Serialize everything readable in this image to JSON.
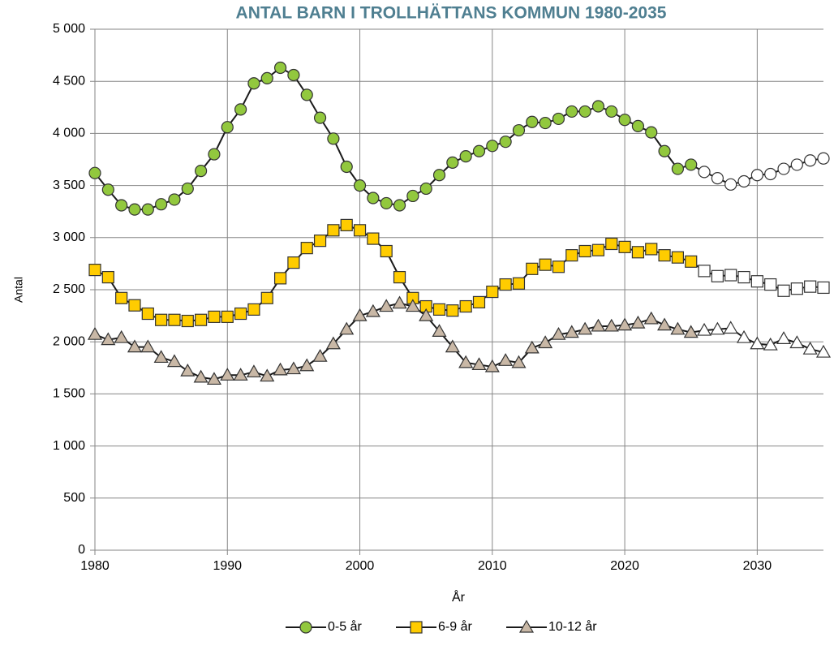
{
  "chart_data": {
    "type": "line",
    "title": "ANTAL BARN I TROLLHÄTTANS KOMMUN 1980-2035",
    "x_label": "År",
    "y_label": "Antal",
    "x": [
      1980,
      1981,
      1982,
      1983,
      1984,
      1985,
      1986,
      1987,
      1988,
      1989,
      1990,
      1991,
      1992,
      1993,
      1994,
      1995,
      1996,
      1997,
      1998,
      1999,
      2000,
      2001,
      2002,
      2003,
      2004,
      2005,
      2006,
      2007,
      2008,
      2009,
      2010,
      2011,
      2012,
      2013,
      2014,
      2015,
      2016,
      2017,
      2018,
      2019,
      2020,
      2021,
      2022,
      2023,
      2024,
      2025,
      2026,
      2027,
      2028,
      2029,
      2030,
      2031,
      2032,
      2033,
      2034,
      2035
    ],
    "series": [
      {
        "name": "0-5 år",
        "color": "#92c83e",
        "marker": "circle",
        "values": [
          3620,
          3460,
          3310,
          3270,
          3270,
          3320,
          3365,
          3470,
          3640,
          3800,
          4060,
          4230,
          4480,
          4530,
          4630,
          4560,
          4370,
          4150,
          3950,
          3680,
          3500,
          3380,
          3330,
          3310,
          3400,
          3470,
          3600,
          3720,
          3780,
          3830,
          3880,
          3920,
          4030,
          4110,
          4100,
          4140,
          4210,
          4210,
          4260,
          4210,
          4130,
          4070,
          4010,
          3830,
          3660,
          3700,
          3630,
          3570,
          3510,
          3540,
          3600,
          3610,
          3660,
          3700,
          3740,
          3760
        ]
      },
      {
        "name": "6-9 år",
        "color": "#ffcc00",
        "marker": "square",
        "values": [
          2690,
          2620,
          2420,
          2350,
          2270,
          2210,
          2210,
          2200,
          2210,
          2240,
          2240,
          2270,
          2310,
          2420,
          2610,
          2760,
          2900,
          2970,
          3070,
          3120,
          3070,
          2990,
          2870,
          2620,
          2420,
          2340,
          2310,
          2300,
          2340,
          2380,
          2480,
          2550,
          2560,
          2700,
          2740,
          2720,
          2830,
          2870,
          2880,
          2940,
          2910,
          2860,
          2890,
          2830,
          2810,
          2770,
          2680,
          2630,
          2640,
          2620,
          2580,
          2550,
          2490,
          2510,
          2530,
          2520
        ]
      },
      {
        "name": "10-12 år",
        "color": "#c9b8a6",
        "marker": "triangle",
        "values": [
          2070,
          2020,
          2040,
          1950,
          1950,
          1850,
          1810,
          1720,
          1660,
          1640,
          1680,
          1680,
          1710,
          1670,
          1730,
          1740,
          1770,
          1860,
          1980,
          2120,
          2250,
          2290,
          2340,
          2370,
          2340,
          2250,
          2100,
          1950,
          1800,
          1780,
          1760,
          1820,
          1800,
          1940,
          1990,
          2070,
          2090,
          2120,
          2150,
          2150,
          2160,
          2180,
          2220,
          2160,
          2120,
          2090,
          2110,
          2120,
          2130,
          2040,
          1980,
          1970,
          2030,
          1990,
          1930,
          1900
        ]
      }
    ],
    "hollow_from": 2026,
    "xlim": [
      1980,
      2035
    ],
    "xticks": [
      1980,
      1990,
      2000,
      2010,
      2020,
      2030
    ],
    "ylim": [
      0,
      5000
    ],
    "yticks": [
      0,
      500,
      {
        "value": 1000,
        "label": "1 000"
      },
      {
        "value": 1500,
        "label": "1 500"
      },
      {
        "value": 2000,
        "label": "2 000"
      },
      {
        "value": 2500,
        "label": "2 500"
      },
      {
        "value": 3000,
        "label": "3 000"
      },
      {
        "value": 3500,
        "label": "3 500"
      },
      {
        "value": 4000,
        "label": "4 000"
      },
      {
        "value": 4500,
        "label": "4 500"
      },
      {
        "value": 5000,
        "label": "5 000"
      }
    ],
    "grid": true,
    "legend": "bottom"
  }
}
